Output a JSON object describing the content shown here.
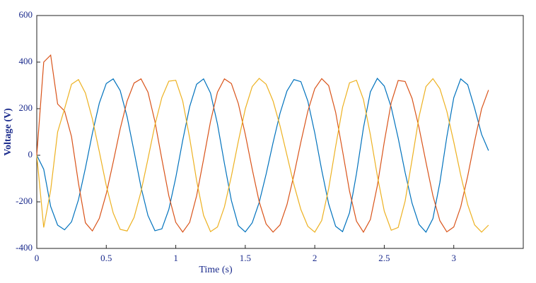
{
  "chart_data": {
    "type": "line",
    "x_label": "Time (s)",
    "y_label": "Voltage (V)",
    "xlim": [
      0,
      3.5
    ],
    "ylim": [
      -400,
      600
    ],
    "xticks": [
      0,
      0.5,
      1,
      1.5,
      2,
      2.5,
      3
    ],
    "yticks": [
      -400,
      -200,
      0,
      200,
      400,
      600
    ],
    "grid": false,
    "x": [
      0,
      0.05,
      0.1,
      0.15,
      0.2,
      0.25,
      0.3,
      0.35,
      0.4,
      0.45,
      0.5,
      0.55,
      0.6,
      0.65,
      0.7,
      0.75,
      0.8,
      0.85,
      0.9,
      0.95,
      1,
      1.05,
      1.1,
      1.15,
      1.2,
      1.25,
      1.3,
      1.35,
      1.4,
      1.45,
      1.5,
      1.55,
      1.6,
      1.65,
      1.7,
      1.75,
      1.8,
      1.85,
      1.9,
      1.95,
      2,
      2.05,
      2.1,
      2.15,
      2.2,
      2.25,
      2.3,
      2.35,
      2.4,
      2.45,
      2.5,
      2.55,
      2.6,
      2.65,
      2.7,
      2.75,
      2.8,
      2.85,
      2.9,
      2.95,
      3,
      3.05,
      3.1,
      3.15,
      3.2,
      3.25
    ],
    "series": [
      {
        "color": "#0072bd",
        "values": [
          0,
          -60,
          -220,
          -300,
          -320,
          -286,
          -191,
          -55,
          94,
          224,
          308,
          328,
          278,
          165,
          16,
          -137,
          -259,
          -324,
          -316,
          -233,
          -96,
          64,
          209,
          305,
          328,
          267,
          134,
          -35,
          -194,
          -302,
          -329,
          -290,
          -203,
          -81,
          54,
          180,
          276,
          325,
          316,
          233,
          96,
          -64,
          -209,
          -305,
          -328,
          -247,
          -79,
          117,
          272,
          330,
          297,
          206,
          74,
          -74,
          -206,
          -297,
          -330,
          -272,
          -117,
          79,
          247,
          328,
          303,
          202,
          90,
          20
        ]
      },
      {
        "color": "#d95319",
        "values": [
          0,
          400,
          430,
          220,
          190,
          80,
          -120,
          -290,
          -325,
          -271,
          -165,
          -29,
          113,
          233,
          310,
          328,
          271,
          145,
          -17,
          -174,
          -288,
          -330,
          -288,
          -174,
          -17,
          145,
          271,
          328,
          308,
          222,
          90,
          -60,
          -199,
          -295,
          -330,
          -299,
          -212,
          -85,
          57,
          189,
          286,
          329,
          299,
          185,
          18,
          -154,
          -283,
          -330,
          -276,
          -131,
          57,
          226,
          321,
          317,
          244,
          119,
          -30,
          -174,
          -281,
          -329,
          -308,
          -222,
          -90,
          60,
          199,
          280
        ]
      },
      {
        "color": "#edb120",
        "values": [
          0,
          -310,
          -150,
          100,
          200,
          305,
          325,
          267,
          156,
          15,
          -130,
          -248,
          -318,
          -325,
          -267,
          -156,
          -15,
          130,
          248,
          318,
          322,
          233,
          74,
          -109,
          -258,
          -328,
          -308,
          -222,
          -90,
          60,
          199,
          295,
          330,
          305,
          233,
          126,
          0,
          -126,
          -233,
          -305,
          -330,
          -280,
          -143,
          37,
          206,
          311,
          322,
          240,
          88,
          -88,
          -240,
          -322,
          -310,
          -197,
          -19,
          165,
          295,
          329,
          286,
          189,
          57,
          -85,
          -212,
          -299,
          -330,
          -300
        ]
      }
    ]
  }
}
